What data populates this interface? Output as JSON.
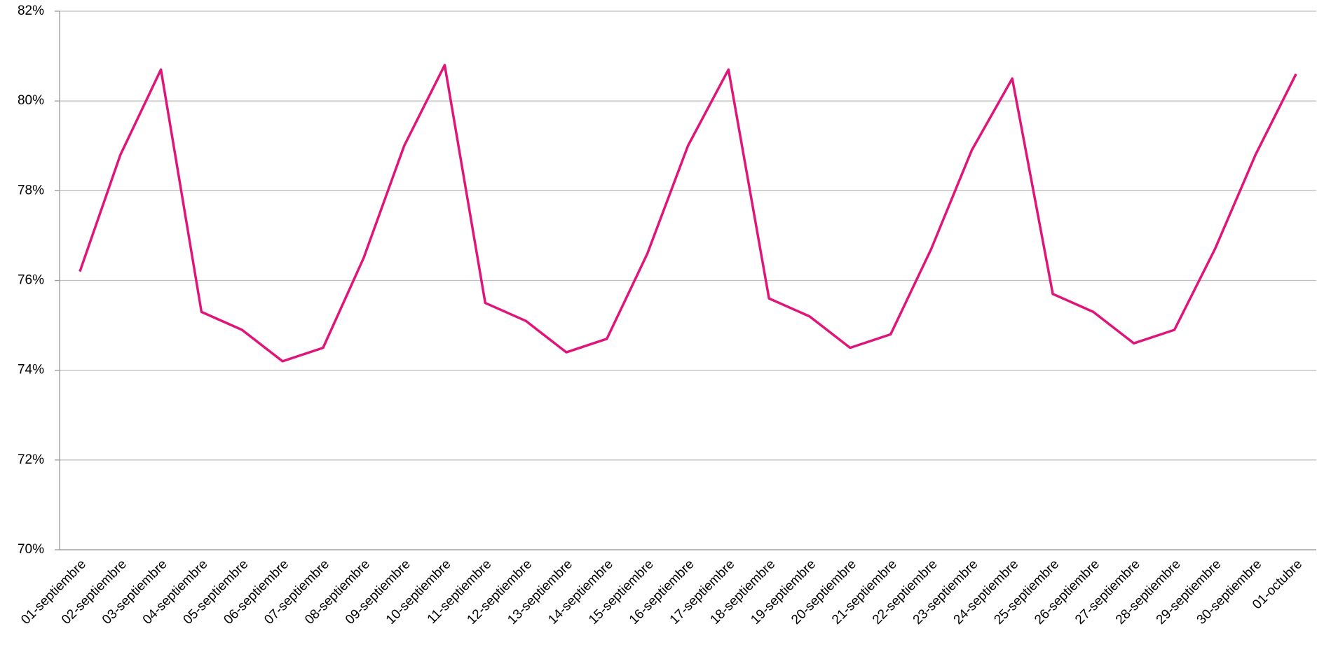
{
  "chart_data": {
    "type": "line",
    "categories": [
      "01-septiembre",
      "02-septiembre",
      "03-septiembre",
      "04-septiembre",
      "05-septiembre",
      "06-septiembre",
      "07-septiembre",
      "08-septiembre",
      "09-septiembre",
      "10-septiembre",
      "11-septiembre",
      "12-septiembre",
      "13-septiembre",
      "14-septiembre",
      "15-septiembre",
      "16-septiembre",
      "17-septiembre",
      "18-septiembre",
      "19-septiembre",
      "20-septiembre",
      "21-septiembre",
      "22-septiembre",
      "23-septiembre",
      "24-septiembre",
      "25-septiembre",
      "26-septiembre",
      "27-septiembre",
      "28-septiembre",
      "29-septiembre",
      "30-septiembre",
      "01-octubre"
    ],
    "values": [
      76.2,
      78.8,
      80.7,
      75.3,
      74.9,
      74.2,
      74.5,
      76.5,
      79.0,
      80.8,
      75.5,
      75.1,
      74.4,
      74.7,
      76.6,
      79.0,
      80.7,
      75.6,
      75.2,
      74.5,
      74.8,
      76.7,
      78.9,
      80.5,
      75.7,
      75.3,
      74.6,
      74.9,
      76.7,
      78.8,
      80.6
    ],
    "color": "#e0157a",
    "ylim": [
      70,
      82
    ],
    "yticks": [
      {
        "value": 70,
        "label": "70%"
      },
      {
        "value": 72,
        "label": "72%"
      },
      {
        "value": 74,
        "label": "74%"
      },
      {
        "value": 76,
        "label": "76%"
      },
      {
        "value": 78,
        "label": "78%"
      },
      {
        "value": 80,
        "label": "80%"
      },
      {
        "value": 82,
        "label": "82%"
      }
    ],
    "grid": true
  }
}
